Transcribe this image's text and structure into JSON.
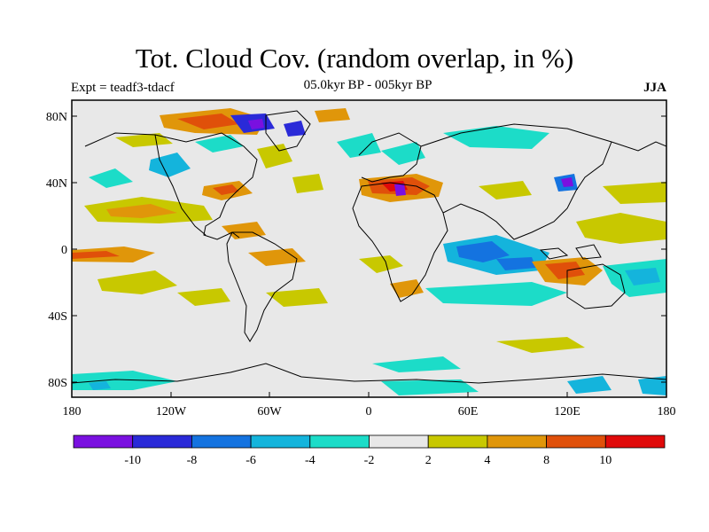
{
  "title": "Tot. Cloud Cov. (random overlap, in %)",
  "experiment": "Expt = teadf3-tdacf",
  "period": "05.0kyr BP - 005kyr BP",
  "season": "JJA",
  "axes": {
    "y_labels": [
      "80N",
      "40N",
      "0",
      "40S",
      "80S"
    ],
    "x_labels": [
      "180",
      "120W",
      "60W",
      "0",
      "60E",
      "120E",
      "180"
    ]
  },
  "colorbar": {
    "colors": [
      "#7a10e0",
      "#2a2ad8",
      "#1473e0",
      "#14b4dc",
      "#1cdcc8",
      "#e8e8e8",
      "#c8c800",
      "#e0960a",
      "#e0500a",
      "#e00a0a"
    ],
    "labels": [
      "-10",
      "-8",
      "-6",
      "-4",
      "-2",
      "2",
      "4",
      "8",
      "10"
    ]
  },
  "colors": {
    "background": "#e8e8e8",
    "coast": "#000000"
  }
}
